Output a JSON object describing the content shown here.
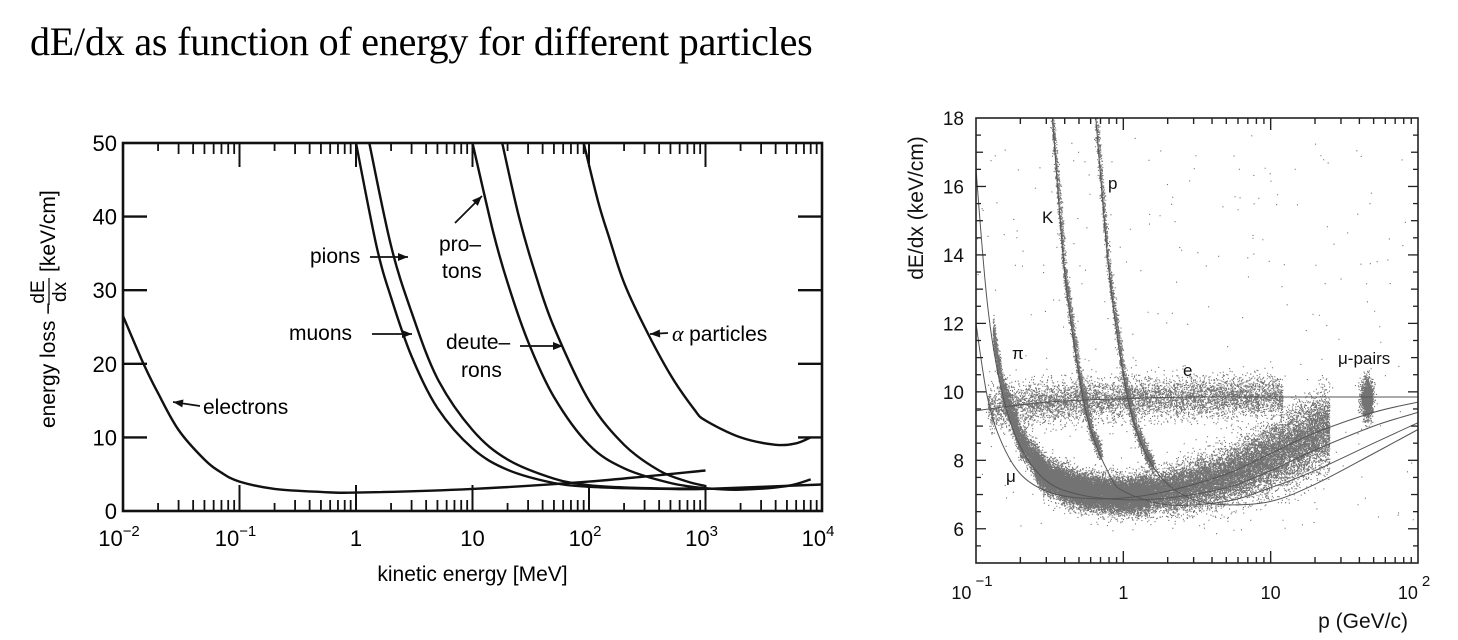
{
  "page": {
    "title": "dE/dx as function of energy for different particles"
  },
  "chart_data": [
    {
      "type": "line",
      "title": "",
      "xlabel": "kinetic energy [MeV]",
      "ylabel_prefix": "energy loss −",
      "ylabel_frac_num": "dE",
      "ylabel_frac_den": "dx",
      "ylabel_suffix": "[keV/cm]",
      "xscale": "log",
      "xlim": [
        0.01,
        10000
      ],
      "ylim": [
        0,
        50
      ],
      "grid": false,
      "x_ticks": [
        {
          "value": 0.01,
          "base": "10",
          "exp": "−2"
        },
        {
          "value": 0.1,
          "base": "10",
          "exp": "−1"
        },
        {
          "value": 1,
          "base": "1",
          "exp": ""
        },
        {
          "value": 10,
          "base": "10",
          "exp": ""
        },
        {
          "value": 100,
          "base": "10",
          "exp": "2"
        },
        {
          "value": 1000,
          "base": "10",
          "exp": "3"
        },
        {
          "value": 10000,
          "base": "10",
          "exp": "4"
        }
      ],
      "y_ticks": [
        0,
        10,
        20,
        30,
        40,
        50
      ],
      "series": [
        {
          "name": "electrons",
          "x": [
            0.01,
            0.015,
            0.02,
            0.03,
            0.05,
            0.07,
            0.1,
            0.2,
            0.5,
            1,
            10,
            100,
            1000
          ],
          "y": [
            26.5,
            20,
            16,
            11,
            7,
            5.2,
            4,
            3,
            2.6,
            2.5,
            3,
            4,
            5.5
          ]
        },
        {
          "name": "muons",
          "x": [
            1,
            1.5,
            2,
            3,
            5,
            10,
            20,
            50,
            100,
            200,
            500,
            1000,
            10000
          ],
          "y": [
            50,
            36,
            29,
            21,
            14,
            8.5,
            5.6,
            3.8,
            3.3,
            3.1,
            3.0,
            3.0,
            3.6
          ]
        },
        {
          "name": "pions",
          "x": [
            1.3,
            2,
            3,
            5,
            10,
            20,
            50,
            100,
            200,
            500,
            1000
          ],
          "y": [
            50,
            36,
            27,
            18,
            11,
            7,
            4.4,
            3.5,
            3.2,
            3.05,
            3.05
          ]
        },
        {
          "name": "protons",
          "x": [
            10,
            15,
            20,
            30,
            50,
            100,
            200,
            500,
            1000,
            2000,
            5000,
            8000
          ],
          "y": [
            50,
            38,
            31,
            23,
            15.5,
            9,
            5.8,
            3.8,
            3.1,
            2.9,
            3.4,
            4.3
          ]
        },
        {
          "name": "deuterons",
          "x": [
            18,
            25,
            35,
            50,
            100,
            200,
            400,
            700,
            1000
          ],
          "y": [
            50,
            40,
            32,
            25,
            15,
            9,
            5.5,
            4,
            3.4
          ]
        },
        {
          "name": "α particles",
          "x": [
            90,
            120,
            150,
            200,
            300,
            500,
            800,
            1000,
            2000,
            4000,
            6000,
            8000
          ],
          "y": [
            50,
            42,
            37,
            31,
            25,
            18.5,
            13.8,
            12.3,
            10,
            9,
            9.2,
            10
          ]
        }
      ],
      "annotations": [
        {
          "text": "electrons",
          "points_to": "electrons",
          "at": {
            "x": 0.025,
            "y": 14.5
          }
        },
        {
          "text": "muons",
          "points_to": "muons",
          "at": {
            "x": 2.5,
            "y": 24
          }
        },
        {
          "text": "pions",
          "points_to": "pions",
          "at": {
            "x": 2.7,
            "y": 34
          }
        },
        {
          "text_lines": [
            "pro–",
            "tons"
          ],
          "points_to": "protons",
          "at": {
            "x": 12,
            "y": 43
          }
        },
        {
          "text_lines": [
            "deute–",
            "rons"
          ],
          "points_to": "deuterons",
          "at": {
            "x": 60,
            "y": 24
          }
        },
        {
          "text": "α particles",
          "points_to": "α particles",
          "at": {
            "x": 310,
            "y": 24
          }
        }
      ]
    },
    {
      "type": "scatter",
      "title": "",
      "xlabel": "p (GeV/c)",
      "ylabel": "dE/dx (keV/cm)",
      "xscale": "log",
      "xlim": [
        0.1,
        100
      ],
      "ylim": [
        5,
        18
      ],
      "grid": false,
      "x_ticks": [
        {
          "value": 0.1,
          "base": "10",
          "exp": "−1"
        },
        {
          "value": 1,
          "base": "1",
          "exp": ""
        },
        {
          "value": 10,
          "base": "10",
          "exp": ""
        },
        {
          "value": 100,
          "base": "10",
          "exp": "2"
        }
      ],
      "y_ticks": [
        6,
        8,
        10,
        12,
        14,
        16,
        18
      ],
      "curves": [
        {
          "name": "e",
          "x": [
            0.1,
            0.3,
            1,
            3,
            10,
            30,
            100
          ],
          "y": [
            9.45,
            9.7,
            9.8,
            9.85,
            9.85,
            9.85,
            9.85
          ]
        },
        {
          "name": "μ",
          "x": [
            0.1,
            0.12,
            0.15,
            0.2,
            0.3,
            0.5,
            1,
            2,
            5,
            10,
            20,
            50,
            100
          ],
          "y": [
            12,
            9.8,
            8.5,
            7.6,
            7.1,
            6.9,
            6.9,
            7.1,
            7.6,
            8.2,
            8.8,
            9.4,
            9.7
          ]
        },
        {
          "name": "π",
          "x": [
            0.1,
            0.12,
            0.15,
            0.2,
            0.3,
            0.5,
            1,
            2,
            5,
            10,
            20,
            50,
            100
          ],
          "y": [
            16.5,
            12.5,
            10,
            8.4,
            7.4,
            7.0,
            6.85,
            6.9,
            7.2,
            7.7,
            8.3,
            9.0,
            9.4
          ]
        },
        {
          "name": "K",
          "x": [
            0.33,
            0.4,
            0.5,
            0.6,
            0.8,
            1,
            2,
            5,
            10,
            20,
            50,
            100
          ],
          "y": [
            18,
            13.5,
            10.5,
            8.9,
            7.6,
            7.1,
            6.7,
            6.8,
            7.2,
            7.7,
            8.5,
            9.1
          ]
        },
        {
          "name": "p",
          "x": [
            0.65,
            0.8,
            1,
            1.2,
            1.5,
            2,
            3,
            5,
            10,
            20,
            50,
            100
          ],
          "y": [
            18,
            13.5,
            10.5,
            9.0,
            8.0,
            7.3,
            6.85,
            6.7,
            6.8,
            7.3,
            8.2,
            8.9
          ]
        }
      ],
      "density_regions": [
        {
          "label": "π/μ band",
          "x_range": [
            0.13,
            20
          ],
          "y_center_at_min": 7.0
        },
        {
          "label": "e band",
          "x_range": [
            0.15,
            20
          ],
          "y": 9.8
        },
        {
          "label": "μ-pairs",
          "x": 45,
          "y": 9.8
        }
      ],
      "annotations": [
        {
          "text": "K",
          "at": {
            "x": 0.27,
            "y": 15.2
          }
        },
        {
          "text": "p",
          "at": {
            "x": 0.88,
            "y": 16.1
          }
        },
        {
          "text": "π",
          "at": {
            "x": 0.17,
            "y": 10.9
          }
        },
        {
          "text": "μ",
          "at": {
            "x": 0.15,
            "y": 7.8
          }
        },
        {
          "text": "e",
          "at": {
            "x": 3.0,
            "y": 10.6
          }
        },
        {
          "text": "μ-pairs",
          "at": {
            "x": 45,
            "y": 10.9
          }
        }
      ]
    }
  ]
}
